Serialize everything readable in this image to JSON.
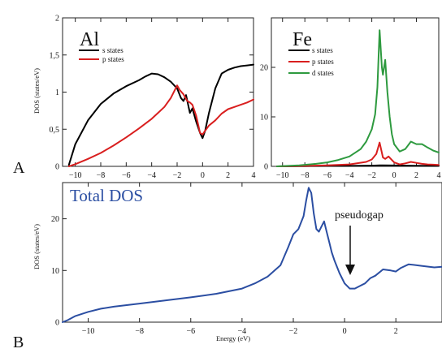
{
  "chart_data": [
    {
      "type": "line",
      "title": "Al",
      "panel_label": "A",
      "ylabel": "DOS (states/eV)",
      "xlim": [
        -11,
        4
      ],
      "ylim": [
        0,
        2
      ],
      "x_ticks": [
        -10,
        -8,
        -6,
        -4,
        -2,
        0,
        2,
        4
      ],
      "y_ticks": [
        0,
        0.5,
        1,
        1.5,
        2
      ],
      "y_tick_labels": [
        "0",
        "0,5",
        "1",
        "1,5",
        "2"
      ],
      "legend": {
        "position": "top-left",
        "entries": [
          "s states",
          "p states"
        ]
      },
      "series": [
        {
          "name": "s states",
          "color": "#000000",
          "x": [
            -10.5,
            -10.0,
            -9.0,
            -8.0,
            -7.0,
            -6.0,
            -5.0,
            -4.5,
            -4.0,
            -3.5,
            -3.0,
            -2.5,
            -2.0,
            -1.7,
            -1.5,
            -1.3,
            -1.0,
            -0.8,
            -0.5,
            -0.2,
            0.0,
            0.2,
            0.5,
            1.0,
            1.5,
            2.0,
            2.5,
            3.0,
            3.5,
            4.0
          ],
          "y": [
            0.02,
            0.3,
            0.62,
            0.84,
            0.98,
            1.08,
            1.16,
            1.21,
            1.25,
            1.24,
            1.2,
            1.14,
            1.05,
            0.92,
            0.88,
            0.96,
            0.72,
            0.78,
            0.6,
            0.45,
            0.38,
            0.48,
            0.72,
            1.05,
            1.25,
            1.3,
            1.33,
            1.35,
            1.36,
            1.37
          ]
        },
        {
          "name": "p states",
          "color": "#d91f1f",
          "x": [
            -10.5,
            -10.0,
            -9.0,
            -8.0,
            -7.0,
            -6.0,
            -5.0,
            -4.0,
            -3.5,
            -3.0,
            -2.5,
            -2.0,
            -1.8,
            -1.5,
            -1.2,
            -1.0,
            -0.8,
            -0.5,
            -0.2,
            0.0,
            0.2,
            0.5,
            1.0,
            1.5,
            2.0,
            2.5,
            3.0,
            3.5,
            4.0
          ],
          "y": [
            0.0,
            0.03,
            0.1,
            0.18,
            0.28,
            0.39,
            0.51,
            0.64,
            0.72,
            0.8,
            0.92,
            1.09,
            1.03,
            0.97,
            0.88,
            0.86,
            0.83,
            0.68,
            0.45,
            0.43,
            0.48,
            0.55,
            0.62,
            0.71,
            0.77,
            0.8,
            0.83,
            0.86,
            0.9
          ]
        }
      ]
    },
    {
      "type": "line",
      "title": "Fe",
      "xlim": [
        -11,
        4
      ],
      "ylim": [
        0,
        30
      ],
      "x_ticks": [
        -10,
        -8,
        -6,
        -4,
        -2,
        0,
        2,
        4
      ],
      "y_ticks": [
        0,
        10,
        20,
        30
      ],
      "y_tick_labels": [
        "0",
        "10",
        "20",
        ""
      ],
      "legend": {
        "position": "top-left",
        "entries": [
          "s states",
          "p states",
          "d states"
        ]
      },
      "series": [
        {
          "name": "s states",
          "color": "#000000",
          "x": [
            -10.5,
            -8.0,
            -6.0,
            -4.0,
            -2.0,
            -1.3,
            -1.0,
            0.0,
            1.0,
            2.0,
            3.0,
            4.0
          ],
          "y": [
            0.0,
            0.05,
            0.08,
            0.1,
            0.15,
            0.2,
            0.2,
            0.18,
            0.15,
            0.12,
            0.1,
            0.1
          ]
        },
        {
          "name": "p states",
          "color": "#d91f1f",
          "x": [
            -10.5,
            -8.0,
            -6.0,
            -4.0,
            -2.5,
            -2.0,
            -1.6,
            -1.3,
            -1.0,
            -0.8,
            -0.5,
            0.0,
            0.5,
            1.0,
            1.5,
            2.0,
            2.5,
            3.0,
            3.5,
            4.0
          ],
          "y": [
            0.0,
            0.1,
            0.2,
            0.4,
            0.9,
            1.4,
            2.5,
            4.8,
            1.8,
            1.5,
            2.0,
            0.8,
            0.4,
            0.6,
            0.9,
            0.7,
            0.5,
            0.4,
            0.35,
            0.3
          ]
        },
        {
          "name": "d states",
          "color": "#2e9a3f",
          "x": [
            -10.5,
            -9.5,
            -8.5,
            -7.0,
            -6.0,
            -5.0,
            -4.0,
            -3.0,
            -2.5,
            -2.0,
            -1.7,
            -1.5,
            -1.3,
            -1.1,
            -1.0,
            -0.8,
            -0.6,
            -0.4,
            -0.2,
            0.0,
            0.5,
            1.0,
            1.5,
            2.0,
            2.5,
            3.0,
            3.5,
            4.0
          ],
          "y": [
            0.0,
            0.1,
            0.2,
            0.5,
            0.8,
            1.3,
            2.0,
            3.5,
            5.0,
            7.5,
            10.5,
            16.0,
            27.5,
            20.0,
            18.5,
            21.5,
            15.0,
            10.0,
            6.5,
            4.5,
            3.0,
            3.5,
            5.0,
            4.5,
            4.5,
            3.8,
            3.2,
            2.8
          ]
        }
      ]
    },
    {
      "type": "line",
      "title": "Total DOS",
      "panel_label": "B",
      "xlabel": "Energy (eV)",
      "ylabel": "DOS (states/eV)",
      "xlim": [
        -11,
        3.8
      ],
      "ylim": [
        0,
        27
      ],
      "x_ticks": [
        -10,
        -8,
        -6,
        -4,
        -2,
        0,
        2
      ],
      "y_ticks": [
        0,
        10,
        20
      ],
      "annotations": [
        {
          "text": "pseudogap",
          "x": 0.3,
          "y": 7.2
        }
      ],
      "series": [
        {
          "name": "Total DOS",
          "color": "#2b4ea2",
          "x": [
            -11.0,
            -10.8,
            -10.5,
            -10.0,
            -9.5,
            -9.0,
            -8.0,
            -7.0,
            -6.0,
            -5.0,
            -4.0,
            -3.5,
            -3.0,
            -2.5,
            -2.2,
            -2.0,
            -1.8,
            -1.6,
            -1.5,
            -1.4,
            -1.3,
            -1.2,
            -1.1,
            -1.0,
            -0.9,
            -0.8,
            -0.7,
            -0.6,
            -0.5,
            -0.4,
            -0.2,
            0.0,
            0.2,
            0.4,
            0.6,
            0.8,
            1.0,
            1.2,
            1.5,
            1.8,
            2.0,
            2.2,
            2.5,
            3.0,
            3.5,
            3.8
          ],
          "y": [
            0.0,
            0.4,
            1.2,
            2.0,
            2.6,
            3.0,
            3.6,
            4.2,
            4.8,
            5.5,
            6.5,
            7.5,
            8.8,
            11.0,
            14.5,
            17.0,
            18.0,
            20.5,
            23.5,
            26.0,
            25.0,
            21.0,
            18.0,
            17.5,
            18.5,
            19.5,
            17.5,
            15.5,
            13.5,
            12.0,
            9.5,
            7.5,
            6.5,
            6.5,
            7.0,
            7.5,
            8.5,
            9.0,
            10.2,
            10.0,
            9.8,
            10.5,
            11.2,
            10.9,
            10.6,
            10.7
          ]
        }
      ]
    }
  ]
}
